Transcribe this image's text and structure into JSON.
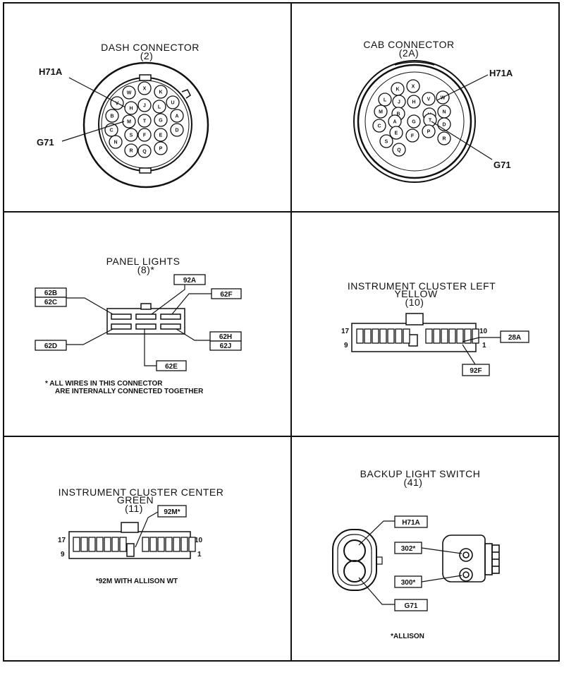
{
  "panels": {
    "dash": {
      "title": "DASH CONNECTOR",
      "code": "(2)",
      "label_top": "H71A",
      "label_bottom": "G71",
      "pins": [
        "X",
        "K",
        "W",
        "V",
        "H",
        "J",
        "L",
        "U",
        "B",
        "M",
        "T",
        "G",
        "A",
        "C",
        "S",
        "F",
        "E",
        "D",
        "N",
        "R",
        "Q",
        "P"
      ]
    },
    "cab": {
      "title": "CAB CONNECTOR",
      "code": "(2A)",
      "label_top": "H71A",
      "label_bottom": "G71",
      "pins": [
        "K",
        "X",
        "L",
        "J",
        "H",
        "V",
        "W",
        "M",
        "B",
        "U",
        "N",
        "C",
        "A",
        "G",
        "T",
        "D",
        "E",
        "F",
        "P",
        "R",
        "S",
        "Q"
      ]
    },
    "panel_lights": {
      "title": "PANEL LIGHTS",
      "code": "(8)*",
      "wires": [
        "62B",
        "62C",
        "92A",
        "62F",
        "62D",
        "62E",
        "62H",
        "62J"
      ],
      "note_line1": "* ALL WIRES IN THIS CONNECTOR",
      "note_line2": "ARE INTERNALLY CONNECTED TOGETHER"
    },
    "ic_left": {
      "title": "INSTRUMENT CLUSTER LEFT",
      "color": "YELLOW",
      "code": "(10)",
      "pin_17": "17",
      "pin_9": "9",
      "pin_10": "10",
      "pin_1": "1",
      "wire_a": "28A",
      "wire_b": "92F"
    },
    "ic_center": {
      "title": "INSTRUMENT CLUSTER CENTER",
      "color": "GREEN",
      "code": "(11)",
      "wire": "92M*",
      "pin_17": "17",
      "pin_9": "9",
      "pin_10": "10",
      "pin_1": "1",
      "note": "*92M WITH ALLISON WT"
    },
    "backup": {
      "title": "BACKUP LIGHT SWITCH",
      "code": "(41)",
      "wires": [
        "H71A",
        "302*",
        "300*",
        "G71"
      ],
      "note": "*ALLISON"
    }
  }
}
